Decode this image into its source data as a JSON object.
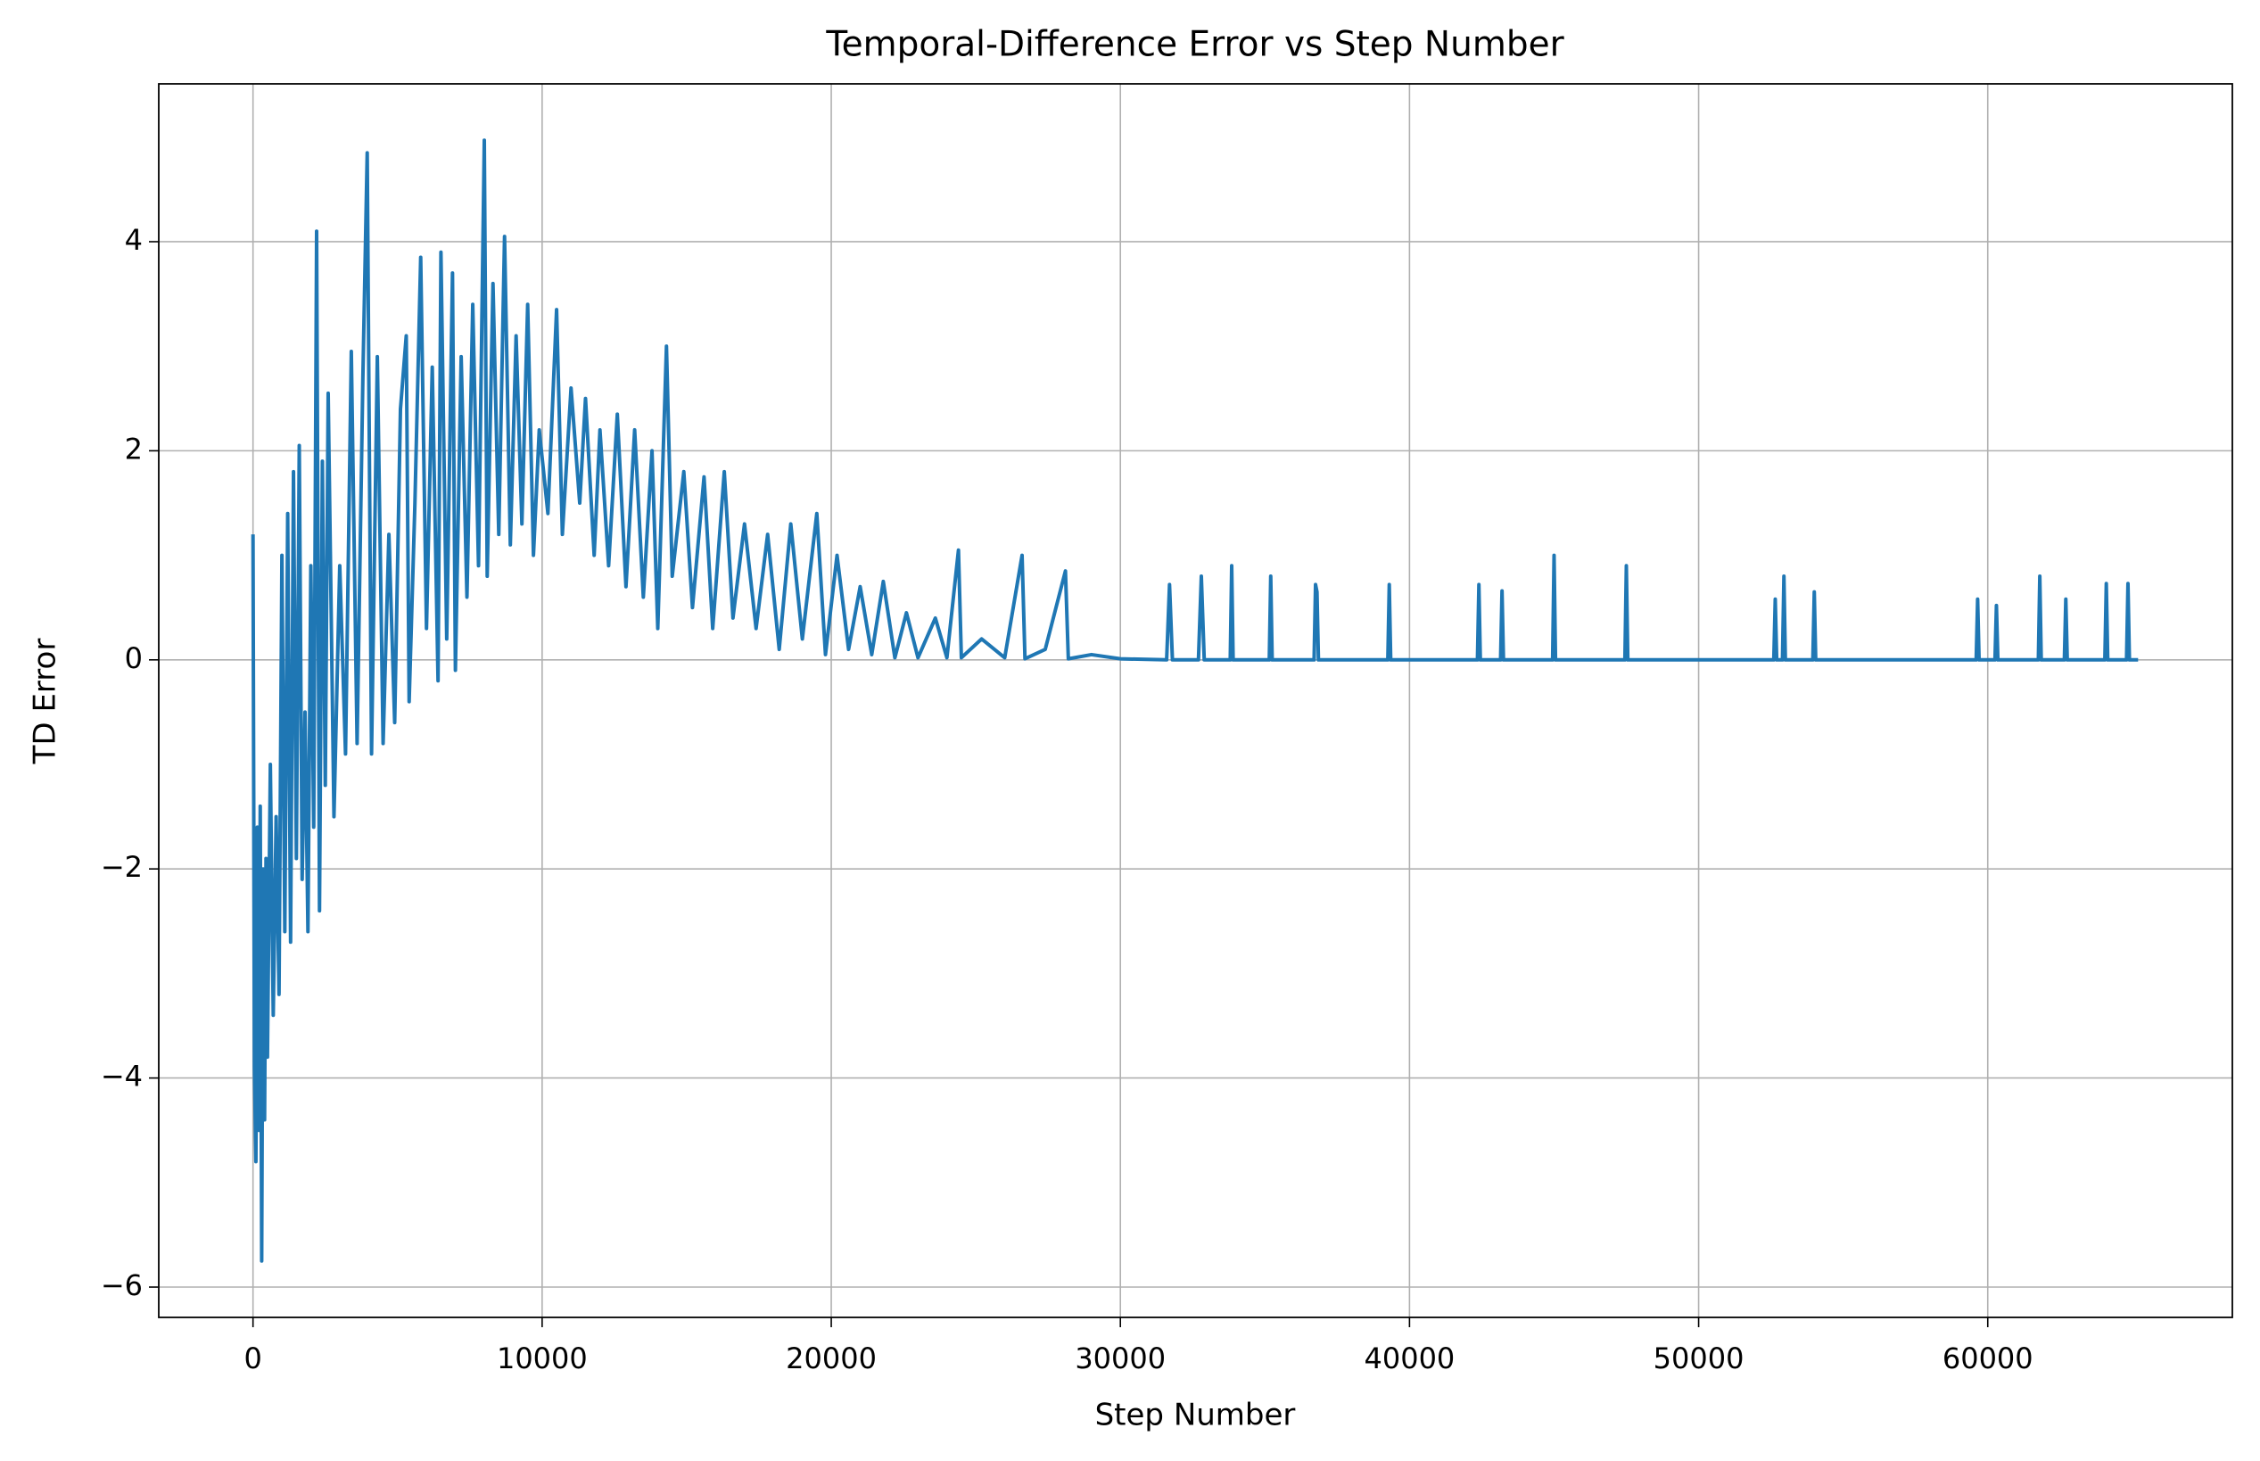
{
  "chart_data": {
    "type": "line",
    "title": "Temporal-Difference Error vs Step Number",
    "x_label": "Step Number",
    "y_label": "TD Error",
    "color": "#1f77b4",
    "grid": true,
    "xlim": [
      -3260,
      68460
    ],
    "ylim": [
      -6.29,
      5.51
    ],
    "xticks": [
      0,
      10000,
      20000,
      30000,
      40000,
      50000,
      60000
    ],
    "yticks": [
      {
        "value": -6,
        "label": "−6"
      },
      {
        "value": -4,
        "label": "−4"
      },
      {
        "value": -2,
        "label": "−2"
      },
      0,
      2,
      4
    ],
    "x": [
      0,
      50,
      100,
      150,
      200,
      250,
      300,
      350,
      400,
      450,
      500,
      600,
      700,
      800,
      900,
      1000,
      1100,
      1200,
      1300,
      1400,
      1500,
      1600,
      1700,
      1800,
      1900,
      2000,
      2100,
      2200,
      2300,
      2400,
      2500,
      2600,
      2800,
      3000,
      3200,
      3400,
      3600,
      3800,
      3950,
      4100,
      4300,
      4500,
      4700,
      4900,
      5100,
      5300,
      5400,
      5600,
      5800,
      6000,
      6200,
      6400,
      6500,
      6700,
      6900,
      7000,
      7200,
      7400,
      7600,
      7800,
      8000,
      8100,
      8300,
      8500,
      8700,
      8900,
      9100,
      9300,
      9500,
      9700,
      9900,
      10200,
      10500,
      10700,
      11000,
      11300,
      11500,
      11800,
      12000,
      12300,
      12600,
      12900,
      13200,
      13500,
      13800,
      14000,
      14300,
      14500,
      14900,
      15200,
      15600,
      15900,
      16300,
      16600,
      17000,
      17400,
      17800,
      18200,
      18600,
      19000,
      19500,
      19800,
      20200,
      20600,
      21000,
      21400,
      21800,
      22200,
      22600,
      23000,
      23600,
      24000,
      24400,
      24500,
      25200,
      26000,
      26600,
      26700,
      27400,
      28100,
      28200,
      29000,
      30000,
      31600,
      31700,
      31800,
      32700,
      32800,
      32900,
      33800,
      33850,
      33900,
      35150,
      35200,
      35250,
      36700,
      36750,
      36800,
      36850,
      39250,
      39300,
      39350,
      42350,
      42400,
      42450,
      43150,
      43200,
      43250,
      44950,
      45000,
      45050,
      47450,
      47500,
      47550,
      52600,
      52650,
      52700,
      52900,
      52950,
      53000,
      53950,
      54000,
      54050,
      59600,
      59650,
      59700,
      60250,
      60300,
      60350,
      61750,
      61800,
      61850,
      62650,
      62700,
      62750,
      64050,
      64100,
      64150,
      64800,
      64850,
      64900,
      65200
    ],
    "values": [
      1.2,
      -3.9,
      -4.8,
      -1.6,
      -4.5,
      -1.4,
      -5.75,
      -2.0,
      -4.4,
      -1.9,
      -3.8,
      -1.0,
      -3.4,
      -1.5,
      -3.2,
      1.0,
      -2.6,
      1.4,
      -2.7,
      1.8,
      -1.9,
      2.05,
      -2.1,
      -0.5,
      -2.6,
      0.9,
      -1.6,
      4.1,
      -2.4,
      1.9,
      -1.2,
      2.55,
      -1.5,
      0.9,
      -0.9,
      2.95,
      -0.8,
      2.7,
      4.85,
      -0.9,
      2.9,
      -0.8,
      1.2,
      -0.6,
      2.4,
      3.1,
      -0.4,
      1.5,
      3.85,
      0.3,
      2.8,
      -0.2,
      3.9,
      0.2,
      3.7,
      -0.1,
      2.9,
      0.6,
      3.4,
      0.9,
      4.97,
      0.8,
      3.6,
      1.2,
      4.05,
      1.1,
      3.1,
      1.3,
      3.4,
      1.0,
      2.2,
      1.4,
      3.35,
      1.2,
      2.6,
      1.5,
      2.5,
      1.0,
      2.2,
      0.9,
      2.35,
      0.7,
      2.2,
      0.6,
      2.0,
      0.3,
      3.0,
      0.8,
      1.8,
      0.5,
      1.75,
      0.3,
      1.8,
      0.4,
      1.3,
      0.3,
      1.2,
      0.1,
      1.3,
      0.2,
      1.4,
      0.05,
      1.0,
      0.1,
      0.7,
      0.05,
      0.75,
      0.02,
      0.45,
      0.02,
      0.4,
      0.02,
      1.05,
      0.02,
      0.2,
      0.02,
      1.0,
      0.01,
      0.1,
      0.85,
      0.01,
      0.05,
      0.01,
      0,
      0.72,
      0,
      0,
      0.8,
      0,
      0,
      0.9,
      0,
      0,
      0.8,
      0,
      0,
      0.72,
      0.65,
      0,
      0,
      0.72,
      0,
      0,
      0.72,
      0,
      0,
      0.66,
      0,
      0,
      1.0,
      0,
      0,
      0.9,
      0,
      0,
      0.58,
      0,
      0,
      0.8,
      0,
      0,
      0.65,
      0,
      0,
      0.58,
      0,
      0,
      0.52,
      0,
      0,
      0.8,
      0,
      0,
      0.58,
      0,
      0,
      0.73,
      0,
      0,
      0.73,
      0,
      0
    ]
  }
}
